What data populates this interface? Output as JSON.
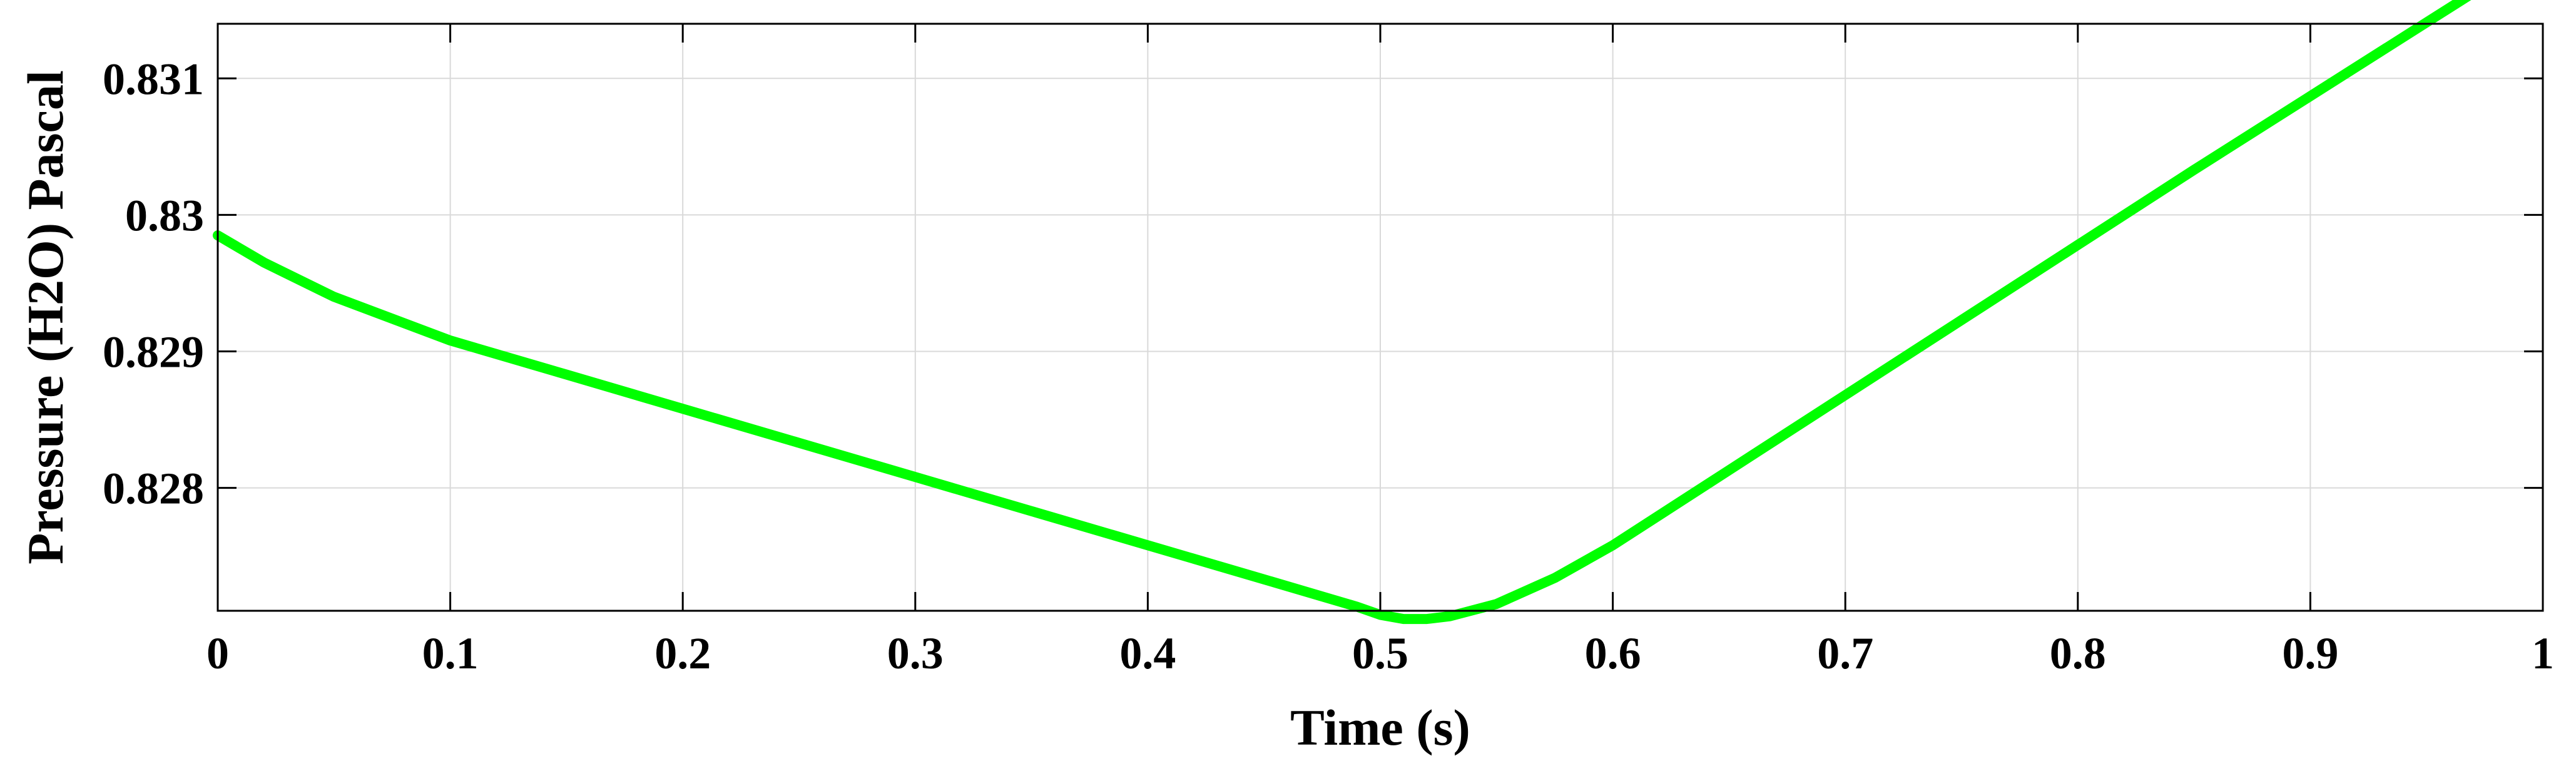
{
  "chart_data": {
    "type": "line",
    "title": "",
    "xlabel": "Time (s)",
    "ylabel": "Pressure (H2O) Pascal",
    "xlim": [
      0,
      1
    ],
    "ylim": [
      0.8271,
      0.8314
    ],
    "grid": true,
    "x_ticks": [
      0,
      0.1,
      0.2,
      0.3,
      0.4,
      0.5,
      0.6,
      0.7,
      0.8,
      0.9,
      1
    ],
    "x_tick_labels": [
      "0",
      "0.1",
      "0.2",
      "0.3",
      "0.4",
      "0.5",
      "0.6",
      "0.7",
      "0.8",
      "0.9",
      "1"
    ],
    "y_ticks": [
      0.828,
      0.829,
      0.83,
      0.831
    ],
    "y_tick_labels": [
      "0.828",
      "0.829",
      "0.83",
      "0.831"
    ],
    "colors": {
      "line": "#00ff00",
      "axes": "#000000",
      "grid": "#d9d9d9",
      "background": "#ffffff"
    },
    "series": [
      {
        "x": [
          0,
          0.02,
          0.05,
          0.1,
          0.15,
          0.2,
          0.25,
          0.3,
          0.35,
          0.4,
          0.45,
          0.49,
          0.5,
          0.51,
          0.52,
          0.53,
          0.55,
          0.575,
          0.6,
          0.65,
          0.7,
          0.75,
          0.8,
          0.85,
          0.9,
          0.95,
          1
        ],
        "y": [
          0.82985,
          0.82965,
          0.8294,
          0.82908,
          0.82883,
          0.82858,
          0.82833,
          0.82808,
          0.82783,
          0.82758,
          0.82733,
          0.82713,
          0.82707,
          0.82704,
          0.82704,
          0.82706,
          0.82715,
          0.82734,
          0.82758,
          0.82813,
          0.82868,
          0.82923,
          0.82978,
          0.83033,
          0.83087,
          0.83141,
          0.83195
        ]
      }
    ]
  }
}
